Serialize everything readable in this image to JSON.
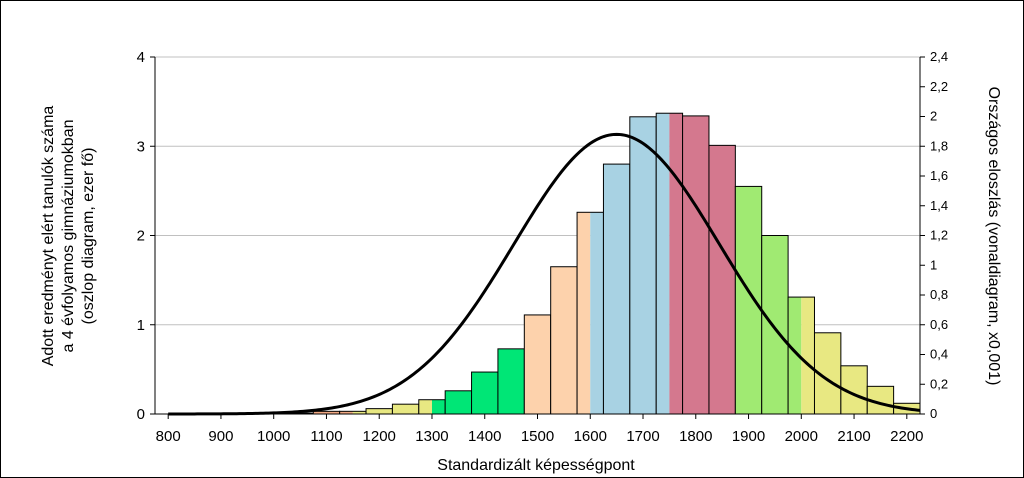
{
  "chart_data": {
    "type": "bar",
    "xlabel": "Standardizált képességpont",
    "ylabel_lines": [
      "Adott eredményt elért tanulók száma",
      "a 4 évfolyamos gimnáziumokban",
      "(oszlop diagram, ezer fő)"
    ],
    "y2label": "Országos eloszlás (vonaldiagram, x0,001)",
    "xlim": [
      775,
      2225
    ],
    "ylim": [
      0,
      4
    ],
    "y2lim": [
      0,
      2.4
    ],
    "x_ticks": [
      "800",
      "900",
      "1000",
      "1100",
      "1200",
      "1300",
      "1400",
      "1500",
      "1600",
      "1700",
      "1800",
      "1900",
      "2000",
      "2100",
      "2200"
    ],
    "y_ticks": [
      "0",
      "1",
      "2",
      "3",
      "4"
    ],
    "y2_ticks": [
      "0",
      "0,2",
      "0,4",
      "0,6",
      "0,8",
      "1",
      "1,2",
      "1,4",
      "1,6",
      "1,8",
      "2",
      "2,2",
      "2,4"
    ],
    "grid": true,
    "bar_width": 50,
    "colors": {
      "salmon": "#f0a883",
      "yellow": "#e8e882",
      "green": "#00e676",
      "peach": "#fdd2ac",
      "blue": "#a8d2e3",
      "rose": "#d4788e",
      "lightgreen": "#a0ea72",
      "curve": "#000000",
      "grid": "#c0c0c0"
    },
    "bars": [
      {
        "x": 800,
        "value": 0.0,
        "color": "salmon"
      },
      {
        "x": 850,
        "value": 0.0,
        "color": "salmon"
      },
      {
        "x": 900,
        "value": 0.0,
        "color": "salmon"
      },
      {
        "x": 950,
        "value": 0.0,
        "color": "salmon"
      },
      {
        "x": 1000,
        "value": 0.0,
        "color": "salmon"
      },
      {
        "x": 1050,
        "value": 0.01,
        "color": "salmon"
      },
      {
        "x": 1100,
        "value": 0.03,
        "color": "salmon"
      },
      {
        "x": 1150,
        "value": 0.03,
        "color": "salmon",
        "split": "yellow"
      },
      {
        "x": 1200,
        "value": 0.06,
        "color": "yellow"
      },
      {
        "x": 1250,
        "value": 0.11,
        "color": "yellow"
      },
      {
        "x": 1300,
        "value": 0.16,
        "color": "yellow",
        "split": "green"
      },
      {
        "x": 1350,
        "value": 0.26,
        "color": "green"
      },
      {
        "x": 1400,
        "value": 0.47,
        "color": "green"
      },
      {
        "x": 1450,
        "value": 0.73,
        "color": "green"
      },
      {
        "x": 1500,
        "value": 1.11,
        "color": "peach"
      },
      {
        "x": 1550,
        "value": 1.65,
        "color": "peach"
      },
      {
        "x": 1600,
        "value": 2.26,
        "color": "peach",
        "split": "blue"
      },
      {
        "x": 1650,
        "value": 2.8,
        "color": "blue"
      },
      {
        "x": 1700,
        "value": 3.33,
        "color": "blue"
      },
      {
        "x": 1750,
        "value": 3.37,
        "color": "blue",
        "split": "rose"
      },
      {
        "x": 1800,
        "value": 3.34,
        "color": "rose"
      },
      {
        "x": 1850,
        "value": 3.01,
        "color": "rose"
      },
      {
        "x": 1900,
        "value": 2.55,
        "color": "lightgreen"
      },
      {
        "x": 1950,
        "value": 2.0,
        "color": "lightgreen"
      },
      {
        "x": 2000,
        "value": 1.31,
        "color": "lightgreen",
        "split": "yellow"
      },
      {
        "x": 2050,
        "value": 0.91,
        "color": "yellow"
      },
      {
        "x": 2100,
        "value": 0.54,
        "color": "yellow"
      },
      {
        "x": 2150,
        "value": 0.31,
        "color": "yellow"
      },
      {
        "x": 2200,
        "value": 0.12,
        "color": "yellow"
      },
      {
        "x": 2250,
        "value": 0.08,
        "color": "yellow"
      }
    ],
    "curve": {
      "type": "normal",
      "mean": 1650,
      "sd": 195,
      "peak_y2": 1.88,
      "x_range": [
        800,
        2225
      ]
    }
  }
}
